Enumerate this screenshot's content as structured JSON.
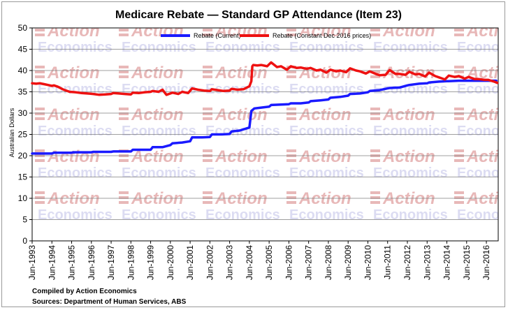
{
  "title": "Medicare Rebate — Standard GP Attendance (Item 23)",
  "footnotes": [
    "Compiled by Action Economics",
    "Sources: Department of Human Services, ABS"
  ],
  "watermark": {
    "line1": "Action",
    "line2": "Economics"
  },
  "chart_data": {
    "type": "line",
    "title": "Medicare Rebate — Standard GP Attendance (Item 23)",
    "ylabel": "Australian Dollars",
    "xlabel": "",
    "ylim": [
      0,
      50
    ],
    "yticks": [
      0,
      5,
      10,
      15,
      20,
      25,
      30,
      35,
      40,
      45,
      50
    ],
    "xlim": [
      1993.4,
      2017.0
    ],
    "xticks": [
      "Jun-1993",
      "Jun-1994",
      "Jun-1995",
      "Jun-1996",
      "Jun-1997",
      "Jun-1998",
      "Jun-1999",
      "Jun-2000",
      "Jun-2001",
      "Jun-2002",
      "Jun-2003",
      "Jun-2004",
      "Jun-2005",
      "Jun-2006",
      "Jun-2007",
      "Jun-2008",
      "Jun-2009",
      "Jun-2010",
      "Jun-2011",
      "Jun-2012",
      "Jun-2013",
      "Jun-2014",
      "Jun-2015",
      "Jun-2016"
    ],
    "grid": true,
    "legend": "top",
    "series": [
      {
        "name": "Rebate (Current)",
        "color": "#1a1aff",
        "x": [
          1993.4,
          1994.4,
          1994.5,
          1995.4,
          1995.5,
          1996.4,
          1996.5,
          1997.4,
          1997.5,
          1998.4,
          1998.5,
          1999.4,
          1999.5,
          2000.0,
          2000.4,
          2000.5,
          2001.0,
          2001.4,
          2001.5,
          2002.0,
          2002.4,
          2002.5,
          2003.0,
          2003.4,
          2003.5,
          2003.9,
          2004.4,
          2004.5,
          2004.65,
          2005.0,
          2005.4,
          2005.5,
          2006.0,
          2006.4,
          2006.5,
          2007.0,
          2007.4,
          2007.5,
          2008.0,
          2008.4,
          2008.5,
          2009.0,
          2009.4,
          2009.5,
          2010.0,
          2010.4,
          2010.5,
          2011.0,
          2011.4,
          2011.5,
          2012.0,
          2012.4,
          2012.5,
          2013.0,
          2013.4,
          2013.5,
          2014.0,
          2014.4,
          2014.5,
          2015.0,
          2015.4,
          2015.5,
          2016.0,
          2016.4,
          2016.5,
          2016.9
        ],
        "values": [
          20.5,
          20.5,
          20.7,
          20.7,
          20.8,
          20.8,
          20.9,
          20.9,
          21.0,
          21.0,
          21.4,
          21.4,
          22.0,
          22.0,
          22.5,
          22.9,
          23.1,
          23.4,
          24.3,
          24.3,
          24.4,
          25.0,
          25.0,
          25.1,
          25.7,
          25.9,
          26.6,
          30.5,
          31.1,
          31.3,
          31.5,
          31.9,
          32.0,
          32.1,
          32.3,
          32.3,
          32.5,
          32.8,
          33.0,
          33.2,
          33.6,
          33.8,
          34.1,
          34.5,
          34.6,
          34.9,
          35.2,
          35.4,
          35.8,
          35.9,
          36.0,
          36.5,
          36.6,
          36.9,
          37.0,
          37.2,
          37.4,
          37.5,
          37.5,
          37.6,
          37.6,
          37.6,
          37.6,
          37.6,
          37.6,
          37.6
        ]
      },
      {
        "name": "Rebate (Constant Dec 2016 prices)",
        "color": "#ee1111",
        "x": [
          1993.4,
          1993.6,
          1993.8,
          1994.0,
          1994.2,
          1994.4,
          1994.5,
          1994.7,
          1995.0,
          1995.3,
          1995.6,
          1995.9,
          1996.2,
          1996.5,
          1996.8,
          1997.1,
          1997.4,
          1997.5,
          1997.8,
          1998.1,
          1998.4,
          1998.5,
          1998.8,
          1999.1,
          1999.4,
          1999.5,
          1999.8,
          2000.0,
          2000.2,
          2000.4,
          2000.5,
          2000.8,
          2001.0,
          2001.3,
          2001.5,
          2001.8,
          2002.1,
          2002.4,
          2002.5,
          2002.8,
          2003.1,
          2003.4,
          2003.5,
          2003.8,
          2004.1,
          2004.4,
          2004.5,
          2004.55,
          2004.6,
          2004.8,
          2005.0,
          2005.3,
          2005.5,
          2005.8,
          2006.0,
          2006.3,
          2006.5,
          2006.8,
          2007.0,
          2007.3,
          2007.5,
          2007.8,
          2008.0,
          2008.3,
          2008.5,
          2008.8,
          2009.0,
          2009.3,
          2009.5,
          2009.8,
          2010.0,
          2010.3,
          2010.5,
          2010.8,
          2011.0,
          2011.3,
          2011.5,
          2011.8,
          2012.0,
          2012.3,
          2012.5,
          2012.8,
          2013.0,
          2013.3,
          2013.5,
          2013.8,
          2014.0,
          2014.3,
          2014.5,
          2014.8,
          2015.0,
          2015.3,
          2015.5,
          2015.8,
          2016.0,
          2016.3,
          2016.5,
          2016.8,
          2016.95
        ],
        "values": [
          37.0,
          36.9,
          37.0,
          36.8,
          36.6,
          36.4,
          36.5,
          36.2,
          35.5,
          35.0,
          34.9,
          34.7,
          34.6,
          34.5,
          34.3,
          34.4,
          34.5,
          34.7,
          34.6,
          34.5,
          34.4,
          34.8,
          34.7,
          34.9,
          35.0,
          35.2,
          35.0,
          35.5,
          34.3,
          34.6,
          34.8,
          34.5,
          35.0,
          34.7,
          35.8,
          35.5,
          35.3,
          35.2,
          35.6,
          35.4,
          35.2,
          35.3,
          35.7,
          35.5,
          35.6,
          36.3,
          37.5,
          41.0,
          41.3,
          41.2,
          41.3,
          41.0,
          41.9,
          40.8,
          41.0,
          40.2,
          41.0,
          40.6,
          40.7,
          40.4,
          40.6,
          40.0,
          40.2,
          39.5,
          40.2,
          39.8,
          40.0,
          39.6,
          40.5,
          40.0,
          39.8,
          39.3,
          39.8,
          39.2,
          38.9,
          39.0,
          40.1,
          39.2,
          39.2,
          39.0,
          39.7,
          39.1,
          39.2,
          38.6,
          39.5,
          38.7,
          38.4,
          37.9,
          38.8,
          38.5,
          38.7,
          38.1,
          38.5,
          38.0,
          38.0,
          37.8,
          37.8,
          37.4,
          37.1
        ]
      }
    ]
  }
}
